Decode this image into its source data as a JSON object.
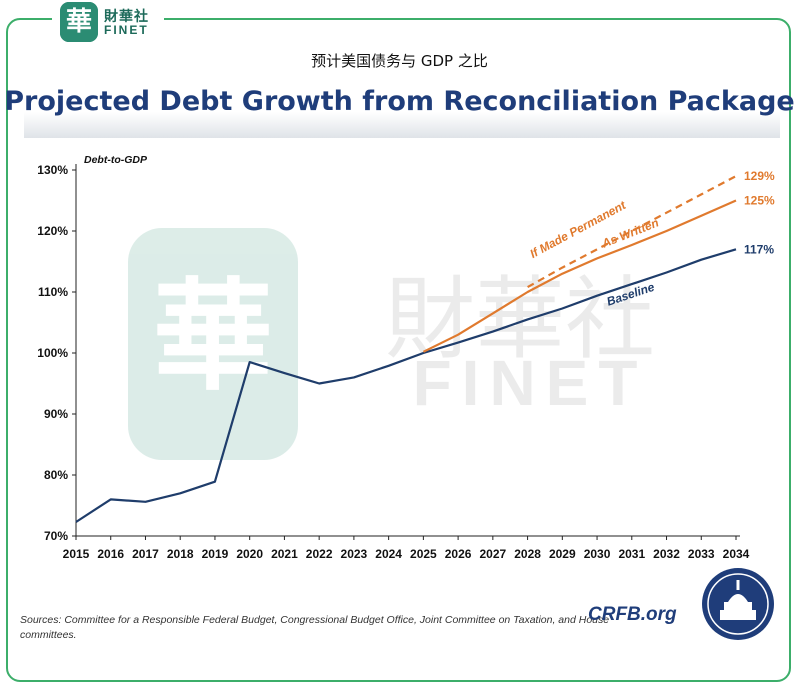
{
  "header": {
    "logo_cn": "財華社",
    "logo_en": "FINET",
    "cn_title": "预计美国债务与 GDP 之比",
    "en_title": "Projected Debt Growth from Reconciliation Package"
  },
  "footer": {
    "sources": "Sources: Committee for a Responsible Federal Budget, Congressional Budget Office, Joint Committee on Taxation, and House committees.",
    "brand": "CRFB.org"
  },
  "watermark": {
    "cn": "財華社",
    "en": "FINET"
  },
  "colors": {
    "baseline": "#1f3d6b",
    "orange": "#e07a2e",
    "frame": "#3cae6a",
    "title": "#1f3d7a"
  },
  "chart_data": {
    "type": "line",
    "title": "Projected Debt Growth from Reconciliation Package",
    "ylabel": "Debt-to-GDP",
    "xlabel": "",
    "ylim": [
      70,
      130
    ],
    "y_ticks": [
      "70%",
      "80%",
      "90%",
      "100%",
      "110%",
      "120%",
      "130%"
    ],
    "y_tick_values": [
      70,
      80,
      90,
      100,
      110,
      120,
      130
    ],
    "x": [
      2015,
      2016,
      2017,
      2018,
      2019,
      2020,
      2021,
      2022,
      2023,
      2024,
      2025,
      2026,
      2027,
      2028,
      2029,
      2030,
      2031,
      2032,
      2033,
      2034
    ],
    "x_labels": [
      "2015",
      "2016",
      "2017",
      "2018",
      "2019",
      "2020",
      "2021",
      "2022",
      "2023",
      "2024",
      "2025",
      "2026",
      "2027",
      "2028",
      "2029",
      "2030",
      "2031",
      "2032",
      "2033",
      "2034"
    ],
    "grid": false,
    "series": [
      {
        "name": "Baseline",
        "style": "solid",
        "color": "#1f3d6b",
        "end_label": "117%",
        "x": [
          2015,
          2016,
          2017,
          2018,
          2019,
          2020,
          2021,
          2022,
          2023,
          2024,
          2025,
          2026,
          2027,
          2028,
          2029,
          2030,
          2031,
          2032,
          2033,
          2034
        ],
        "values": [
          72.3,
          76,
          75.6,
          77,
          78.9,
          98.5,
          96.7,
          95,
          96,
          97.9,
          100,
          101.7,
          103.5,
          105.5,
          107.3,
          109.4,
          111.3,
          113.2,
          115.3,
          117
        ]
      },
      {
        "name": "As Written",
        "style": "solid",
        "color": "#e07a2e",
        "end_label": "125%",
        "x": [
          2025,
          2026,
          2027,
          2028,
          2029,
          2030,
          2031,
          2032,
          2033,
          2034
        ],
        "values": [
          100.2,
          103,
          106.5,
          110,
          113,
          115.5,
          117.7,
          120,
          122.5,
          125
        ]
      },
      {
        "name": "If Made Permanent",
        "style": "dashed",
        "color": "#e07a2e",
        "end_label": "129%",
        "x": [
          2028,
          2029,
          2030,
          2031,
          2032,
          2033,
          2034
        ],
        "values": [
          110.8,
          114,
          117,
          120,
          123,
          126,
          129
        ]
      }
    ]
  }
}
